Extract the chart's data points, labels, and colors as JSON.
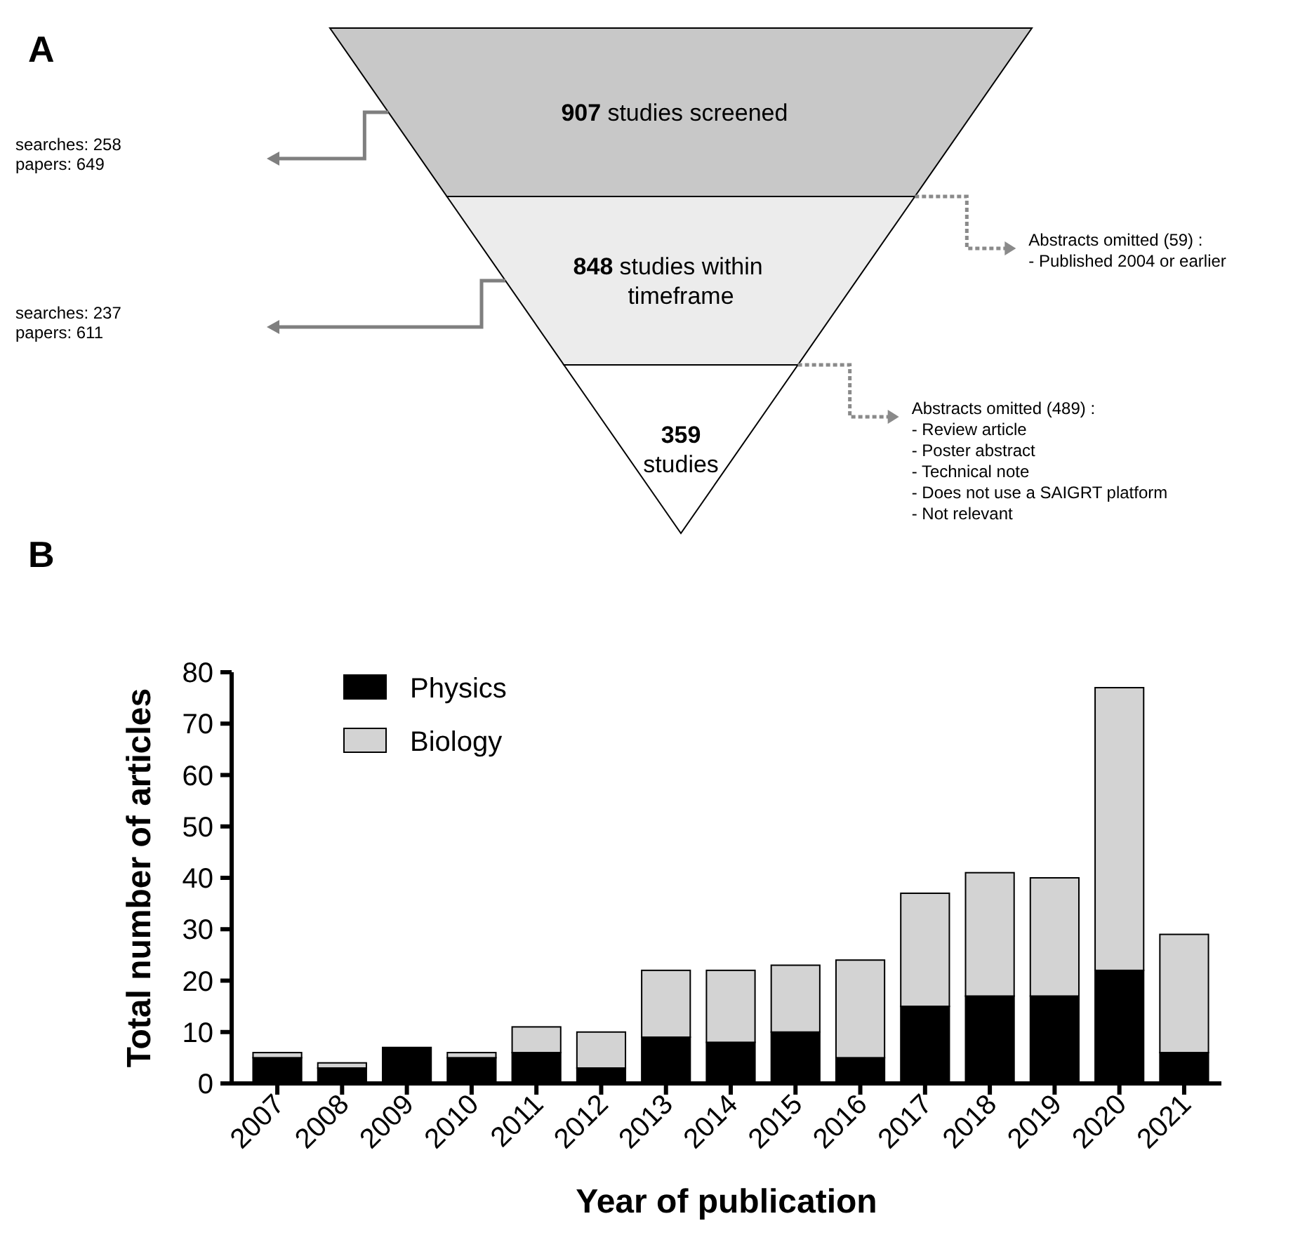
{
  "chart_data": [
    {
      "type": "other",
      "title": "A",
      "data_labels": true,
      "categories": [
        "studies screened",
        "studies within\ntimeframe",
        "studies"
      ],
      "values": [
        907,
        848,
        359
      ],
      "colors": [
        "#c8c8c8",
        "#ececec",
        "#ffffff"
      ],
      "annotations": [
        "searches: 258\npapers: 649",
        "Abstracts omitted (59) :\n-    Published 2004 or earlier",
        "searches: 237\npapers: 611",
        "Abstracts omitted (489) :\n-    Review article\n-    Poster abstract\n-    Technical note\n-    Does not use a SAIGRT platform\n-    Not relevant"
      ]
    },
    {
      "type": "bar",
      "title": "B",
      "stacked": true,
      "legend": "top left",
      "xlabel": "Year of publication",
      "ylabel": "Total number of articles",
      "categories": [
        "2007",
        "2008",
        "2009",
        "2010",
        "2011",
        "2012",
        "2013",
        "2014",
        "2015",
        "2016",
        "2017",
        "2018",
        "2019",
        "2020",
        "2021"
      ],
      "series": [
        {
          "name": "Physics",
          "color": "#000000",
          "values": [
            5,
            3,
            7,
            5,
            6,
            3,
            9,
            8,
            10,
            5,
            15,
            17,
            17,
            22,
            6
          ]
        },
        {
          "name": "Biology",
          "color": "#d3d3d3",
          "values": [
            1,
            1,
            0,
            1,
            5,
            7,
            13,
            14,
            13,
            19,
            22,
            24,
            23,
            55,
            23
          ]
        }
      ],
      "ylim": [
        0,
        80
      ],
      "yticks": [
        0,
        10,
        20,
        30,
        40,
        50,
        60,
        70,
        80
      ]
    }
  ]
}
